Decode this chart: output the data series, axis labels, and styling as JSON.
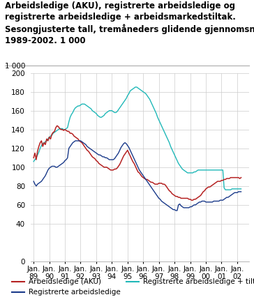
{
  "title_line1": "Arbeidsledige (AKU), registrerte arbeidsledige og",
  "title_line2": "registrerte arbeidsledige + arbeidsmarkedstiltak.",
  "title_line3": "Sesongjusterte tall, tremåneders glidende gjennomsnitt.",
  "title_line4": "1989-2002. 1 000",
  "ylabel_top": "1 000",
  "ylim": [
    0,
    200
  ],
  "yticks": [
    0,
    40,
    60,
    80,
    100,
    120,
    140,
    160,
    180,
    200
  ],
  "xlim_start": 1989.0,
  "xlim_end": 2002.75,
  "xtick_years": [
    1989,
    1990,
    1991,
    1992,
    1993,
    1994,
    1995,
    1996,
    1997,
    1998,
    1999,
    2000,
    2001,
    2002
  ],
  "color_aku": "#b52222",
  "color_reg": "#1a3a8a",
  "color_tiltak": "#20b8b8",
  "legend_labels": [
    "Arbeidsledige (AKU)",
    "Registrerte arbeidsledige",
    "Registrerte arbeidsledige + tiltak"
  ],
  "background_color": "#ffffff",
  "grid_color": "#cccccc",
  "title_fontsize": 8.5,
  "axis_fontsize": 7.5,
  "legend_fontsize": 7.5,
  "aku": [
    110,
    115,
    108,
    117,
    122,
    126,
    128,
    122,
    126,
    124,
    130,
    128,
    132,
    130,
    135,
    137,
    138,
    142,
    144,
    143,
    141,
    140,
    140,
    139,
    140,
    139,
    138,
    138,
    136,
    136,
    135,
    133,
    132,
    131,
    130,
    128,
    127,
    126,
    124,
    122,
    120,
    118,
    117,
    115,
    113,
    111,
    110,
    109,
    107,
    106,
    104,
    103,
    102,
    101,
    100,
    100,
    100,
    99,
    98,
    97,
    97,
    97,
    98,
    98,
    99,
    101,
    103,
    106,
    109,
    112,
    114,
    116,
    118,
    115,
    112,
    109,
    106,
    104,
    101,
    98,
    95,
    94,
    92,
    90,
    89,
    88,
    87,
    87,
    86,
    85,
    84,
    84,
    83,
    82,
    82,
    82,
    83,
    83,
    83,
    82,
    82,
    81,
    79,
    77,
    75,
    74,
    72,
    71,
    70,
    69,
    69,
    68,
    68,
    67,
    67,
    67,
    67,
    67,
    67,
    66,
    66,
    65,
    65,
    66,
    66,
    67,
    68,
    69,
    70,
    72,
    74,
    75,
    77,
    78,
    79,
    79,
    80,
    81,
    82,
    83,
    84,
    85,
    85,
    85,
    86,
    86,
    87,
    87,
    88,
    88,
    88,
    89,
    89,
    89,
    89,
    89,
    89,
    89,
    88,
    89,
    89,
    89,
    89,
    89,
    89,
    89,
    89,
    89,
    89,
    89
  ],
  "reg": [
    85,
    82,
    80,
    82,
    83,
    84,
    85,
    87,
    89,
    91,
    94,
    97,
    99,
    100,
    101,
    101,
    101,
    100,
    100,
    101,
    102,
    103,
    104,
    105,
    107,
    108,
    110,
    120,
    122,
    124,
    126,
    127,
    128,
    128,
    128,
    128,
    128,
    127,
    126,
    125,
    124,
    122,
    121,
    120,
    119,
    118,
    117,
    116,
    115,
    114,
    113,
    113,
    112,
    111,
    111,
    110,
    110,
    109,
    108,
    108,
    108,
    108,
    109,
    111,
    113,
    115,
    118,
    121,
    123,
    125,
    126,
    125,
    123,
    121,
    118,
    115,
    112,
    109,
    106,
    103,
    100,
    97,
    95,
    93,
    91,
    89,
    87,
    85,
    83,
    81,
    79,
    77,
    75,
    73,
    71,
    69,
    67,
    66,
    64,
    63,
    62,
    61,
    60,
    59,
    58,
    57,
    56,
    55,
    55,
    54,
    54,
    60,
    61,
    59,
    58,
    57,
    57,
    57,
    57,
    57,
    58,
    58,
    59,
    60,
    60,
    61,
    62,
    63,
    63,
    64,
    64,
    64,
    63,
    63,
    63,
    63,
    63,
    63,
    64,
    64,
    64,
    64,
    64,
    65,
    65,
    65,
    66,
    67,
    68,
    68,
    69,
    70,
    71,
    72,
    73,
    73,
    73,
    74,
    74,
    74,
    74,
    74,
    74,
    74,
    74,
    74,
    73,
    73,
    73,
    73
  ],
  "tiltak": [
    106,
    108,
    110,
    113,
    116,
    120,
    123,
    125,
    126,
    127,
    128,
    130,
    132,
    133,
    134,
    136,
    137,
    138,
    139,
    140,
    141,
    141,
    141,
    140,
    140,
    141,
    142,
    148,
    153,
    156,
    158,
    161,
    163,
    164,
    165,
    165,
    166,
    167,
    167,
    167,
    166,
    165,
    164,
    163,
    162,
    160,
    159,
    158,
    157,
    155,
    154,
    153,
    153,
    154,
    155,
    157,
    158,
    159,
    160,
    160,
    160,
    159,
    158,
    158,
    159,
    161,
    163,
    165,
    167,
    169,
    171,
    173,
    176,
    178,
    181,
    182,
    183,
    184,
    185,
    185,
    184,
    183,
    182,
    181,
    180,
    179,
    178,
    176,
    174,
    172,
    169,
    166,
    163,
    160,
    157,
    153,
    150,
    147,
    144,
    141,
    138,
    135,
    132,
    129,
    126,
    122,
    119,
    116,
    113,
    110,
    107,
    104,
    102,
    100,
    98,
    97,
    96,
    95,
    94,
    94,
    94,
    94,
    94,
    95,
    95,
    96,
    97,
    97,
    97,
    97,
    97,
    97,
    97,
    97,
    97,
    97,
    97,
    97,
    97,
    97,
    97,
    97,
    97,
    97,
    97,
    97,
    78,
    76,
    76,
    76,
    76,
    76,
    77,
    77,
    77,
    77,
    77,
    77,
    77,
    77,
    77,
    78,
    78,
    79,
    79,
    79,
    80,
    80,
    81,
    82
  ]
}
